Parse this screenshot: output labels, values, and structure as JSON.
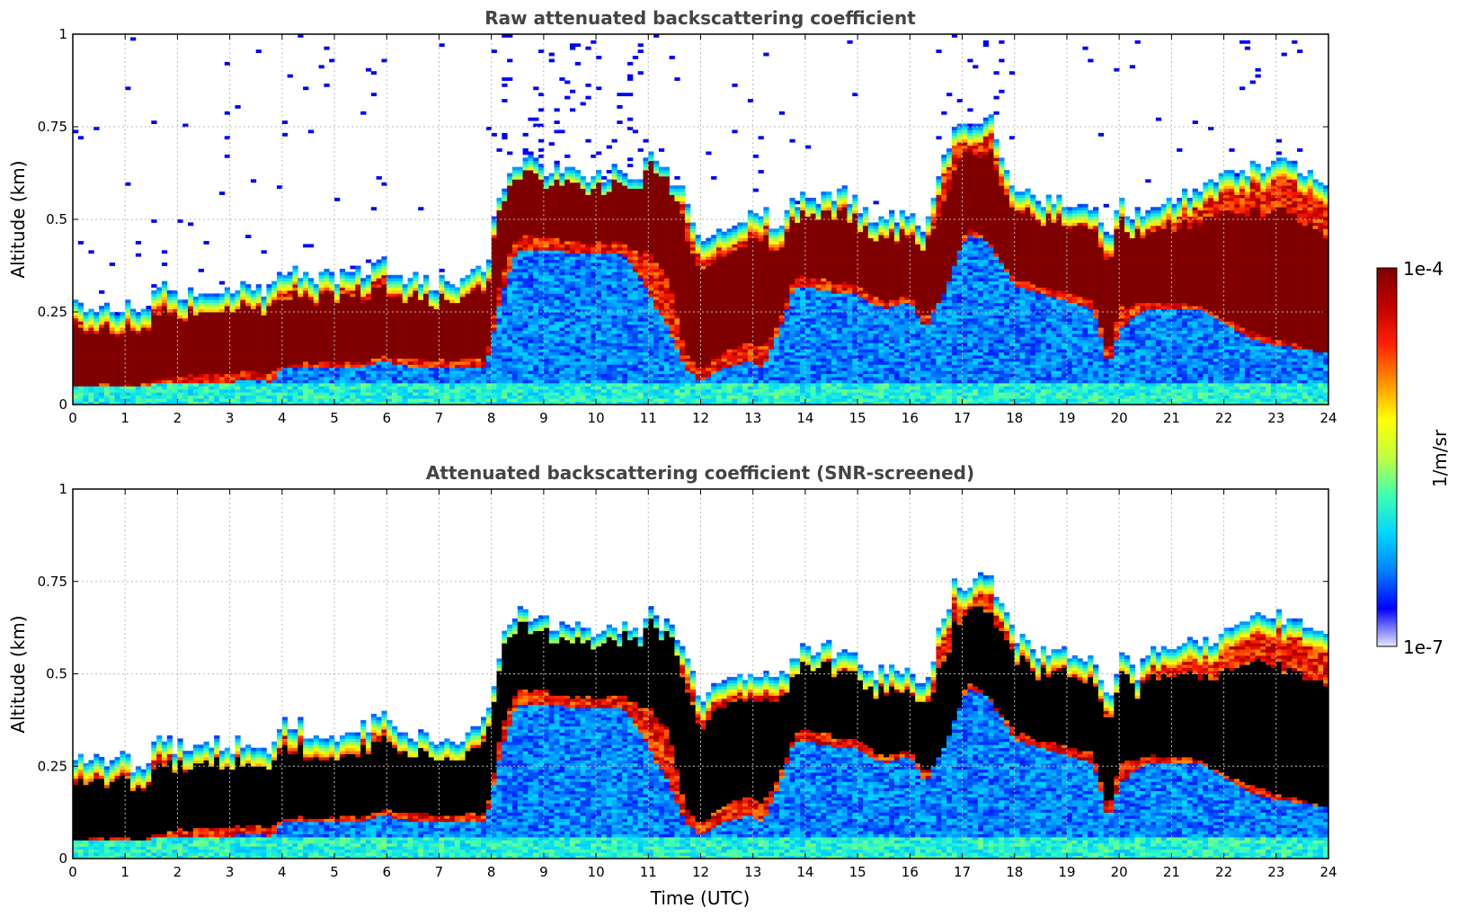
{
  "chart_data": [
    {
      "type": "heatmap",
      "title": "Raw attenuated backscattering coefficient",
      "xlabel": "",
      "ylabel": "Altitude (km)",
      "xlim": [
        0,
        24
      ],
      "ylim": [
        0,
        1
      ],
      "xticks": [
        "0",
        "1",
        "2",
        "3",
        "4",
        "5",
        "6",
        "7",
        "8",
        "9",
        "10",
        "11",
        "12",
        "13",
        "14",
        "15",
        "16",
        "17",
        "18",
        "19",
        "20",
        "21",
        "22",
        "23",
        "24"
      ],
      "yticks": [
        "0",
        "0.25",
        "0.5",
        "0.75",
        "1"
      ],
      "grid": true,
      "saturation_color": "#800000",
      "layer": {
        "time": [
          0,
          0.5,
          1,
          1.4,
          1.6,
          2,
          2.5,
          3,
          3.5,
          3.8,
          4,
          4.5,
          5,
          5.5,
          5.9,
          6.5,
          7,
          7.5,
          7.9,
          8.2,
          8.5,
          9,
          9.5,
          10,
          10.5,
          10.8,
          11,
          11.4,
          11.7,
          12,
          12.5,
          12.9,
          13.2,
          13.5,
          13.8,
          14,
          14.3,
          14.6,
          14.9,
          15.2,
          15.5,
          16,
          16.3,
          16.6,
          16.9,
          17.1,
          17.5,
          18,
          18.5,
          19,
          19.5,
          19.8,
          20,
          20.3,
          20.6,
          21,
          21.5,
          22,
          22.5,
          23,
          23.5,
          23.9
        ],
        "top": [
          0.28,
          0.26,
          0.27,
          0.24,
          0.33,
          0.3,
          0.31,
          0.31,
          0.32,
          0.31,
          0.37,
          0.35,
          0.34,
          0.35,
          0.38,
          0.34,
          0.33,
          0.33,
          0.38,
          0.58,
          0.66,
          0.64,
          0.62,
          0.62,
          0.63,
          0.6,
          0.67,
          0.62,
          0.56,
          0.42,
          0.48,
          0.5,
          0.52,
          0.48,
          0.55,
          0.58,
          0.56,
          0.57,
          0.56,
          0.5,
          0.5,
          0.52,
          0.46,
          0.64,
          0.76,
          0.74,
          0.78,
          0.6,
          0.56,
          0.55,
          0.53,
          0.42,
          0.55,
          0.5,
          0.55,
          0.56,
          0.58,
          0.62,
          0.64,
          0.66,
          0.62,
          0.6
        ],
        "core": [
          0.13,
          0.13,
          0.13,
          0.12,
          0.16,
          0.16,
          0.17,
          0.17,
          0.18,
          0.17,
          0.2,
          0.2,
          0.2,
          0.2,
          0.22,
          0.21,
          0.2,
          0.2,
          0.22,
          0.45,
          0.54,
          0.53,
          0.51,
          0.51,
          0.52,
          0.5,
          0.54,
          0.49,
          0.3,
          0.22,
          0.28,
          0.3,
          0.3,
          0.32,
          0.42,
          0.44,
          0.43,
          0.42,
          0.42,
          0.38,
          0.36,
          0.38,
          0.32,
          0.4,
          0.52,
          0.58,
          0.56,
          0.44,
          0.41,
          0.4,
          0.38,
          0.24,
          0.38,
          0.36,
          0.38,
          0.38,
          0.38,
          0.37,
          0.36,
          0.35,
          0.32,
          0.3
        ],
        "base": [
          0.05,
          0.05,
          0.05,
          0.05,
          0.06,
          0.06,
          0.06,
          0.06,
          0.07,
          0.06,
          0.1,
          0.1,
          0.1,
          0.1,
          0.12,
          0.1,
          0.1,
          0.1,
          0.1,
          0.3,
          0.42,
          0.42,
          0.41,
          0.41,
          0.41,
          0.35,
          0.3,
          0.2,
          0.1,
          0.06,
          0.1,
          0.12,
          0.1,
          0.2,
          0.32,
          0.32,
          0.31,
          0.3,
          0.3,
          0.28,
          0.26,
          0.28,
          0.2,
          0.3,
          0.4,
          0.46,
          0.44,
          0.32,
          0.3,
          0.28,
          0.26,
          0.1,
          0.2,
          0.24,
          0.26,
          0.26,
          0.26,
          0.22,
          0.18,
          0.16,
          0.15,
          0.14
        ]
      }
    },
    {
      "type": "heatmap",
      "title": "Attenuated backscattering coefficient (SNR-screened)",
      "xlabel": "Time (UTC)",
      "ylabel": "Altitude (km)",
      "xlim": [
        0,
        24
      ],
      "ylim": [
        0,
        1
      ],
      "xticks": [
        "0",
        "1",
        "2",
        "3",
        "4",
        "5",
        "6",
        "7",
        "8",
        "9",
        "10",
        "11",
        "12",
        "13",
        "14",
        "15",
        "16",
        "17",
        "18",
        "19",
        "20",
        "21",
        "22",
        "23",
        "24"
      ],
      "yticks": [
        "0",
        "0.25",
        "0.5",
        "0.75",
        "1"
      ],
      "grid": true,
      "saturation_color": "#000000"
    }
  ],
  "colorbar": {
    "label": "1/m/sr",
    "min_label": "1e-7",
    "max_label": "1e-4",
    "colormap": [
      "#e8e8ff",
      "#0000ff",
      "#0080ff",
      "#00d8ff",
      "#40ffb0",
      "#c0ff40",
      "#ffff00",
      "#ff9000",
      "#ff2000",
      "#c00000",
      "#800000"
    ]
  }
}
